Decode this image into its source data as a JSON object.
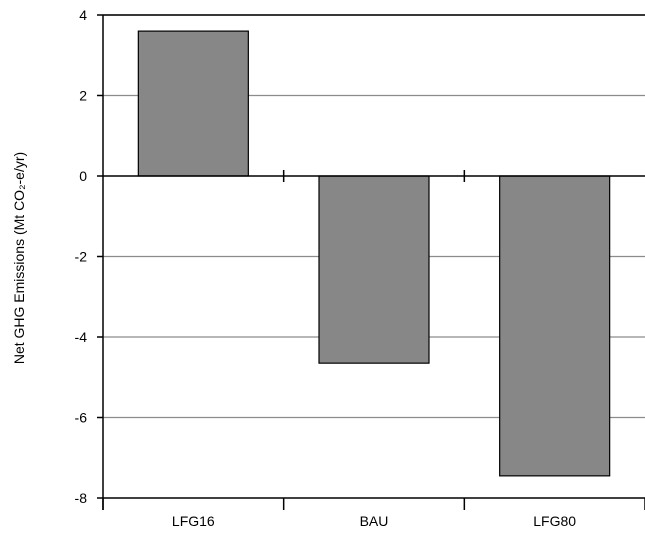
{
  "chart_data": {
    "type": "bar",
    "categories": [
      "LFG16",
      "BAU",
      "LFG80"
    ],
    "values": [
      3.6,
      -4.65,
      -7.45
    ],
    "title": "",
    "xlabel": "",
    "ylabel": "Net GHG Emissions (Mt CO₂-e/yr)",
    "ylim": [
      -8,
      4
    ],
    "yticks": [
      4,
      2,
      0,
      -2,
      -4,
      -6,
      -8
    ],
    "ytick_labels": [
      "4",
      "2",
      "0",
      "-2",
      "-4",
      "-6",
      "-8"
    ],
    "grid": true,
    "legend": "none",
    "colors": {
      "bar_fill": "#878787",
      "bar_stroke": "#000000",
      "grid": "#8c8c8c",
      "axis": "#000000"
    }
  }
}
